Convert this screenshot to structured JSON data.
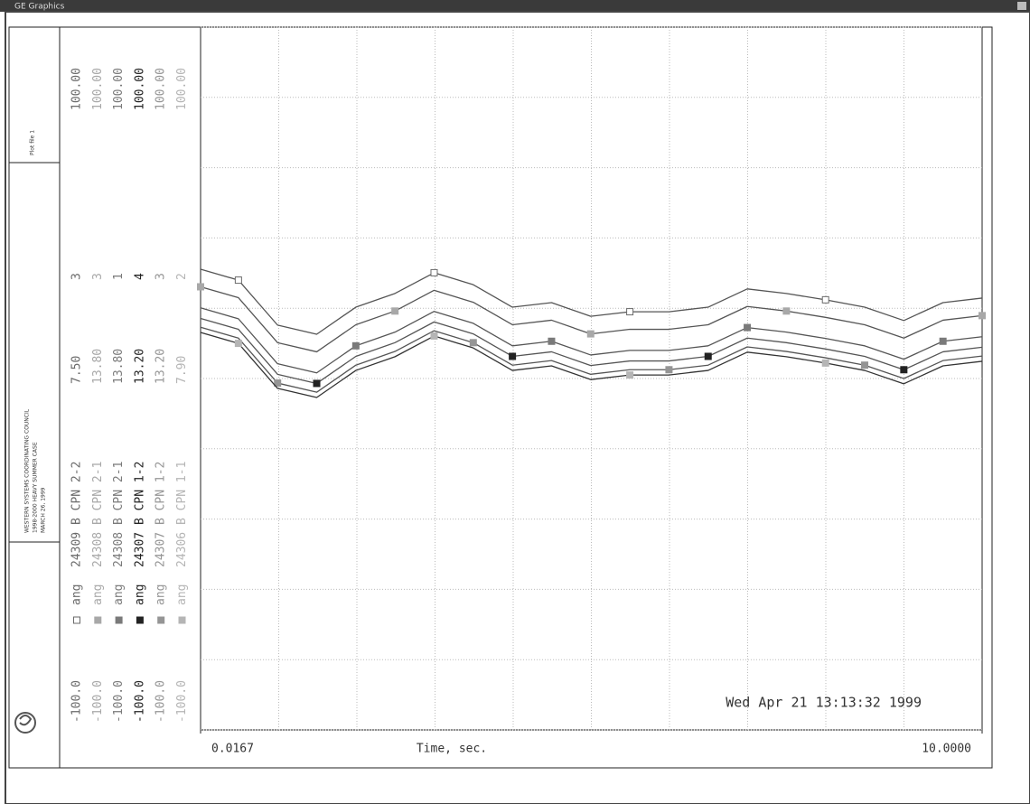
{
  "window": {
    "title": "GE Graphics"
  },
  "side_panel": {
    "plot_file": "Plot file 1",
    "case_lines": [
      "WESTERN SYSTEMS COORDINATING COUNCIL",
      "1998-2000 HEAVY SUMMER CASE",
      "MARCH 26, 1999"
    ]
  },
  "legend": [
    {
      "min": "-100.0",
      "quantity": "ang",
      "name": "24309 B CPN 2-2",
      "kv": "7.50",
      "id": "3",
      "max": "100.00",
      "color": "#6a6a6a",
      "marker": "open"
    },
    {
      "min": "-100.0",
      "quantity": "ang",
      "name": "24308 B CPN 2-1",
      "kv": "13.80",
      "id": "3",
      "max": "100.00",
      "color": "#a8a8a8",
      "marker": "filled"
    },
    {
      "min": "-100.0",
      "quantity": "ang",
      "name": "24308 B CPN 2-1",
      "kv": "13.80",
      "id": "1",
      "max": "100.00",
      "color": "#7a7a7a",
      "marker": "filled"
    },
    {
      "min": "-100.0",
      "quantity": "ang",
      "name": "24307 B CPN 1-2",
      "kv": "13.20",
      "id": "4",
      "max": "100.00",
      "color": "#222222",
      "marker": "filled"
    },
    {
      "min": "-100.0",
      "quantity": "ang",
      "name": "24307 B CPN 1-2",
      "kv": "13.20",
      "id": "3",
      "max": "100.00",
      "color": "#959595",
      "marker": "filled"
    },
    {
      "min": "-100.0",
      "quantity": "ang",
      "name": "24306 B CPN 1-1",
      "kv": "7.90",
      "id": "2",
      "max": "100.00",
      "color": "#b5b5b5",
      "marker": "filled"
    }
  ],
  "chart_data": {
    "type": "line",
    "x_label": "Time, sec.",
    "timestamp": "Wed Apr 21 13:13:32 1999",
    "xlim": [
      0.0167,
      10
    ],
    "xticks": [
      {
        "value": 0.0167,
        "label": "0.0167"
      },
      {
        "value": 10,
        "label": "10.0000"
      }
    ],
    "x_grid_divisions": 10,
    "ylim": [
      -100,
      100
    ],
    "yticks": [
      -100,
      -80,
      -60,
      -40,
      -20,
      0,
      20,
      40,
      60,
      80,
      100
    ],
    "grid": true,
    "x": [
      0.0167,
      0.5,
      1,
      1.5,
      2,
      2.5,
      3,
      3.5,
      4,
      4.5,
      5,
      5.5,
      6,
      6.5,
      7,
      7.5,
      8,
      8.5,
      9,
      9.5,
      10
    ],
    "series": [
      {
        "name": "24306 B CPN 1-1",
        "color": "#555555",
        "values": [
          31.1,
          28,
          15.2,
          12.6,
          20.3,
          24.2,
          30.1,
          26.7,
          20.3,
          21.6,
          17.7,
          19,
          19,
          20.3,
          25.5,
          24.2,
          22.4,
          20.3,
          16.5,
          21.6,
          22.9
        ]
      },
      {
        "name": "24307 B CPN 1-2",
        "color": "#555555",
        "values": [
          26.1,
          23,
          10.2,
          7.6,
          15.3,
          19.2,
          25.1,
          21.7,
          15.3,
          16.6,
          12.7,
          14,
          14,
          15.3,
          20.5,
          19.2,
          17.4,
          15.3,
          11.5,
          16.6,
          17.9
        ]
      },
      {
        "name": "24308 B CPN 2-1",
        "color": "#555555",
        "values": [
          20.1,
          17,
          4.2,
          1.6,
          9.3,
          13.2,
          19.1,
          15.7,
          9.3,
          10.6,
          6.7,
          8,
          8,
          9.3,
          14.5,
          13.2,
          11.4,
          9.3,
          5.5,
          10.6,
          11.9
        ]
      },
      {
        "name": "24309 B CPN 2-2",
        "color": "#555555",
        "values": [
          17.1,
          14,
          1.2,
          -1.4,
          6.3,
          10.2,
          16.1,
          12.7,
          6.3,
          7.6,
          3.7,
          5,
          5,
          6.3,
          11.5,
          10.2,
          8.4,
          6.3,
          2.5,
          7.6,
          8.9
        ]
      },
      {
        "name": "24307 B CPN 1-2",
        "color": "#555555",
        "values": [
          14.6,
          11.5,
          -1.3,
          -3.9,
          3.8,
          7.7,
          13.6,
          10.2,
          3.8,
          5.1,
          1.2,
          2.5,
          2.5,
          3.8,
          9,
          7.7,
          5.9,
          3.8,
          0,
          5.1,
          6.4
        ]
      },
      {
        "name": "24308 B CPN 2-1",
        "color": "#333333",
        "values": [
          13.1,
          10,
          -2.8,
          -5.4,
          2.3,
          6.2,
          12.1,
          8.7,
          2.3,
          3.6,
          -0.3,
          1.0,
          1.0,
          2.3,
          7.5,
          6.2,
          4.4,
          2.3,
          -1.5,
          3.6,
          4.9
        ]
      }
    ]
  }
}
